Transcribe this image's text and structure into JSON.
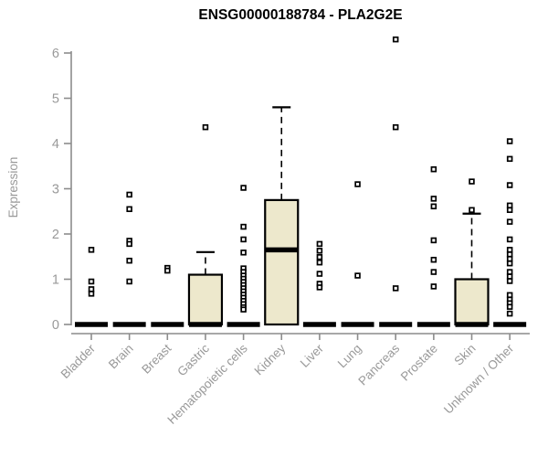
{
  "page": {
    "title": "ENSG00000188784 - PLA2G2E"
  },
  "chart_data": {
    "type": "boxplot",
    "title": "ENSG00000188784 - PLA2G2E",
    "xlabel": "",
    "ylabel": "Expression",
    "ylim": [
      0,
      6.4
    ],
    "yticks": [
      0,
      1,
      2,
      3,
      4,
      5,
      6
    ],
    "grid": false,
    "legend": "none",
    "colors": {
      "box_fill": "#ede8cc",
      "box_stroke": "#000000",
      "median": "#000000",
      "axis": "#8c8c8c",
      "tick_label": "#999999",
      "title": "#000000"
    },
    "categories": [
      "Bladder",
      "Brain",
      "Breast",
      "Gastric",
      "Hematopoietic cells",
      "Kidney",
      "Liver",
      "Lung",
      "Pancreas",
      "Prostate",
      "Skin",
      "Unknown / Other"
    ],
    "series": [
      {
        "category": "Bladder",
        "q1": 0,
        "median": 0,
        "q3": 0,
        "whisker_low": 0,
        "whisker_high": 0,
        "outliers": [
          1.65,
          0.95,
          0.78,
          0.68
        ]
      },
      {
        "category": "Brain",
        "q1": 0,
        "median": 0,
        "q3": 0,
        "whisker_low": 0,
        "whisker_high": 0,
        "outliers": [
          2.87,
          2.55,
          1.85,
          1.78,
          1.41,
          0.95
        ]
      },
      {
        "category": "Breast",
        "q1": 0,
        "median": 0,
        "q3": 0,
        "whisker_low": 0,
        "whisker_high": 0,
        "outliers": [
          1.25,
          1.19
        ]
      },
      {
        "category": "Gastric",
        "q1": 0,
        "median": 0,
        "q3": 1.1,
        "whisker_low": 0,
        "whisker_high": 1.6,
        "outliers": [
          4.36
        ]
      },
      {
        "category": "Hematopoietic cells",
        "q1": 0,
        "median": 0,
        "q3": 0,
        "whisker_low": 0,
        "whisker_high": 0,
        "outliers": [
          3.02,
          2.16,
          1.88,
          1.59,
          1.24,
          1.16,
          1.08,
          1.01,
          0.94,
          0.87,
          0.8,
          0.73,
          0.66,
          0.59,
          0.52,
          0.45,
          0.38,
          0.33
        ]
      },
      {
        "category": "Kidney",
        "q1": 0,
        "median": 1.65,
        "q3": 2.75,
        "whisker_low": 0,
        "whisker_high": 4.8,
        "outliers": []
      },
      {
        "category": "Liver",
        "q1": 0,
        "median": 0,
        "q3": 0,
        "whisker_low": 0,
        "whisker_high": 0,
        "outliers": [
          1.78,
          1.63,
          1.49,
          1.37,
          1.12,
          0.9,
          0.82
        ]
      },
      {
        "category": "Lung",
        "q1": 0,
        "median": 0,
        "q3": 0,
        "whisker_low": 0,
        "whisker_high": 0,
        "outliers": [
          3.1,
          1.08
        ]
      },
      {
        "category": "Pancreas",
        "q1": 0,
        "median": 0,
        "q3": 0,
        "whisker_low": 0,
        "whisker_high": 0,
        "outliers": [
          6.3,
          4.36,
          0.8
        ]
      },
      {
        "category": "Prostate",
        "q1": 0,
        "median": 0,
        "q3": 0,
        "whisker_low": 0,
        "whisker_high": 0,
        "outliers": [
          3.43,
          2.78,
          2.61,
          1.86,
          1.43,
          1.16,
          0.84
        ]
      },
      {
        "category": "Skin",
        "q1": 0,
        "median": 0,
        "q3": 1.0,
        "whisker_low": 0,
        "whisker_high": 2.45,
        "outliers": [
          3.16,
          2.53
        ]
      },
      {
        "category": "Unknown / Other",
        "q1": 0,
        "median": 0,
        "q3": 0,
        "whisker_low": 0,
        "whisker_high": 0,
        "outliers": [
          4.05,
          3.66,
          3.08,
          2.63,
          2.53,
          2.27,
          1.88,
          1.65,
          1.55,
          1.45,
          1.35,
          1.16,
          1.06,
          0.96,
          0.65,
          0.55,
          0.47,
          0.39,
          0.24
        ]
      }
    ]
  }
}
